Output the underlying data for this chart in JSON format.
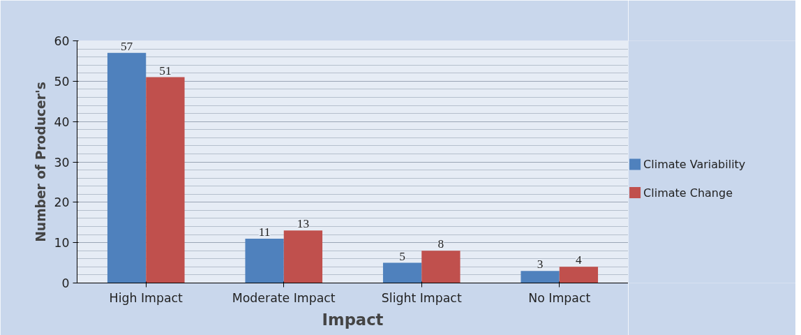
{
  "chart_data": {
    "type": "bar",
    "xlabel": "Impact",
    "ylabel": "Number of Producer's",
    "categories": [
      "High Impact",
      "Moderate Impact",
      "Slight Impact",
      "No Impact"
    ],
    "series": [
      {
        "name": "Climate Variability",
        "color": "#4f81bd",
        "values": [
          57,
          11,
          5,
          3
        ]
      },
      {
        "name": "Climate Change",
        "color": "#c0504d",
        "values": [
          51,
          13,
          8,
          4
        ]
      }
    ],
    "ylim": [
      0,
      60
    ],
    "yticks": [
      0,
      10,
      20,
      30,
      40,
      50,
      60
    ],
    "grid": "y",
    "legend": "right",
    "data_labels": true
  }
}
